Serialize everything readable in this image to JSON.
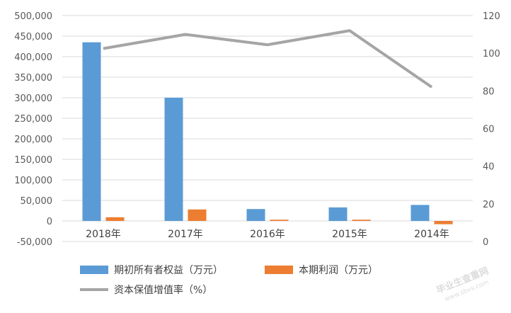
{
  "chart_data": {
    "type": "bar",
    "categories": [
      "2018年",
      "2017年",
      "2016年",
      "2015年",
      "2014年"
    ],
    "series": [
      {
        "name": "期初所有者权益（万元）",
        "type": "bar",
        "axis": "left",
        "color": "#5B9BD5",
        "values": [
          435000,
          300000,
          29000,
          33000,
          39000
        ]
      },
      {
        "name": "本期利润（万元）",
        "type": "bar",
        "axis": "left",
        "color": "#ED7D31",
        "values": [
          9000,
          28000,
          3000,
          3000,
          -8000
        ]
      },
      {
        "name": "资本保值增值率（%）",
        "type": "line",
        "axis": "right",
        "color": "#A5A5A5",
        "values": [
          102.5,
          110,
          104.5,
          112,
          82
        ]
      }
    ],
    "y_left": {
      "min": -50000,
      "max": 500000,
      "step": 50000,
      "tick_labels": [
        "-50,000",
        "0",
        "50,000",
        "100,000",
        "150,000",
        "200,000",
        "250,000",
        "300,000",
        "350,000",
        "400,000",
        "450,000",
        "500,000"
      ]
    },
    "y_right": {
      "min": 0,
      "max": 120,
      "step": 20,
      "tick_labels": [
        "0",
        "20",
        "40",
        "60",
        "80",
        "100",
        "120"
      ]
    },
    "grid": true,
    "legend_position": "bottom"
  },
  "watermark": {
    "line1": "毕业生查重网",
    "line2": "www.sbvv.com"
  }
}
